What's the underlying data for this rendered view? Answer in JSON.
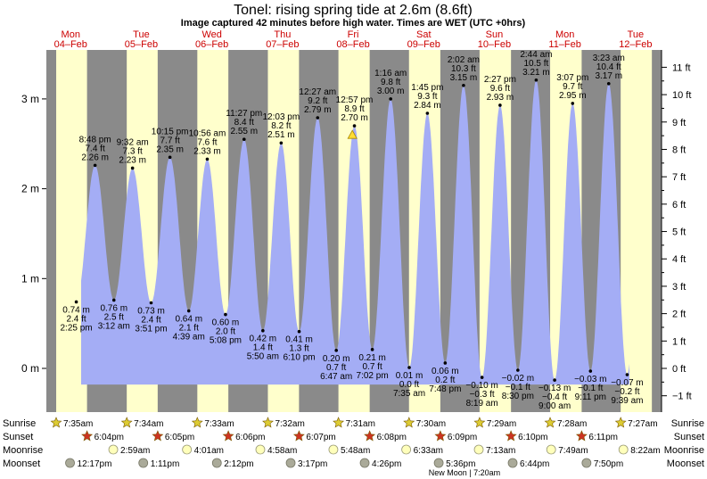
{
  "header": {
    "title": "Tonel: rising  spring tide at 2.6m (8.6ft)",
    "subtitle": "Image captured 42 minutes before high water. Times are WET (UTC +0hrs)"
  },
  "colors": {
    "night": "#8a8a8a",
    "day": "#ffffcc",
    "tide_fill": "#a4adf5",
    "day_label": "#cc0000",
    "sunrise_star": "#ddcc33",
    "sunset_star": "#cc3322",
    "moonrise": "#ffffbb",
    "moonset": "#aaaa99"
  },
  "chart_data": {
    "type": "area",
    "title": "Tonel: rising  spring tide at 2.6m (8.6ft)",
    "ylabel_left": "m",
    "ylabel_right": "ft",
    "ylim_m": [
      -0.55,
      3.5
    ],
    "yticks_m": [
      {
        "v": 0,
        "label": "0 m"
      },
      {
        "v": 1,
        "label": "1 m"
      },
      {
        "v": 2,
        "label": "2 m"
      },
      {
        "v": 3,
        "label": "3 m"
      }
    ],
    "yticks_ft": [
      {
        "v": -1,
        "label": "−1 ft"
      },
      {
        "v": 0,
        "label": "0 ft"
      },
      {
        "v": 1,
        "label": "1 ft"
      },
      {
        "v": 2,
        "label": "2 ft"
      },
      {
        "v": 3,
        "label": "3 ft"
      },
      {
        "v": 4,
        "label": "4 ft"
      },
      {
        "v": 5,
        "label": "5 ft"
      },
      {
        "v": 6,
        "label": "6 ft"
      },
      {
        "v": 7,
        "label": "7 ft"
      },
      {
        "v": 8,
        "label": "8 ft"
      },
      {
        "v": 9,
        "label": "9 ft"
      },
      {
        "v": 10,
        "label": "10 ft"
      },
      {
        "v": 11,
        "label": "11 ft"
      }
    ],
    "days": [
      {
        "name": "Mon",
        "date": "04–Feb",
        "sunrise": "7:35am",
        "sunset": "6:04pm",
        "moonrise": "",
        "moonset": "12:17pm"
      },
      {
        "name": "Tue",
        "date": "05–Feb",
        "sunrise": "7:34am",
        "sunset": "6:05pm",
        "moonrise": "2:59am",
        "moonset": "1:11pm"
      },
      {
        "name": "Wed",
        "date": "06–Feb",
        "sunrise": "7:33am",
        "sunset": "6:06pm",
        "moonrise": "4:01am",
        "moonset": "2:12pm"
      },
      {
        "name": "Thu",
        "date": "07–Feb",
        "sunrise": "7:32am",
        "sunset": "6:07pm",
        "moonrise": "4:58am",
        "moonset": "3:17pm"
      },
      {
        "name": "Fri",
        "date": "08–Feb",
        "sunrise": "7:31am",
        "sunset": "6:08pm",
        "moonrise": "5:48am",
        "moonset": "4:26pm"
      },
      {
        "name": "Sat",
        "date": "09–Feb",
        "sunrise": "7:30am",
        "sunset": "6:09pm",
        "moonrise": "6:33am",
        "moonset": "5:36pm"
      },
      {
        "name": "Sun",
        "date": "10–Feb",
        "sunrise": "7:29am",
        "sunset": "6:10pm",
        "moonrise": "7:13am",
        "moonset": "6:44pm"
      },
      {
        "name": "Mon",
        "date": "11–Feb",
        "sunrise": "7:28am",
        "sunset": "6:11pm",
        "moonrise": "7:49am",
        "moonset": "7:50pm"
      },
      {
        "name": "Tue",
        "date": "12–Feb",
        "sunrise": "7:27am",
        "sunset": "",
        "moonrise": "8:22am",
        "moonset": ""
      }
    ],
    "tides": [
      {
        "type": "low",
        "t": "2019-02-04 14:25",
        "m": 0.74,
        "m_label": "0.74 m",
        "ft_label": "2.4 ft",
        "time_label": "2:25 pm"
      },
      {
        "type": "high",
        "t": "2019-02-04 20:48",
        "m": 2.26,
        "m_label": "2.26 m",
        "ft_label": "7.4 ft",
        "time_label": "8:48 pm"
      },
      {
        "type": "low",
        "t": "2019-02-05 03:12",
        "m": 0.76,
        "m_label": "0.76 m",
        "ft_label": "2.5 ft",
        "time_label": "3:12 am"
      },
      {
        "type": "high",
        "t": "2019-02-05 09:32",
        "m": 2.23,
        "m_label": "2.23 m",
        "ft_label": "7.3 ft",
        "time_label": "9:32 am"
      },
      {
        "type": "low",
        "t": "2019-02-05 15:51",
        "m": 0.73,
        "m_label": "0.73 m",
        "ft_label": "2.4 ft",
        "time_label": "3:51 pm"
      },
      {
        "type": "high",
        "t": "2019-02-05 22:15",
        "m": 2.35,
        "m_label": "2.35 m",
        "ft_label": "7.7 ft",
        "time_label": "10:15 pm"
      },
      {
        "type": "low",
        "t": "2019-02-06 04:39",
        "m": 0.64,
        "m_label": "0.64 m",
        "ft_label": "2.1 ft",
        "time_label": "4:39 am"
      },
      {
        "type": "high",
        "t": "2019-02-06 10:56",
        "m": 2.33,
        "m_label": "2.33 m",
        "ft_label": "7.6 ft",
        "time_label": "10:56 am"
      },
      {
        "type": "low",
        "t": "2019-02-06 17:08",
        "m": 0.6,
        "m_label": "0.60 m",
        "ft_label": "2.0 ft",
        "time_label": "5:08 pm"
      },
      {
        "type": "high",
        "t": "2019-02-06 23:27",
        "m": 2.55,
        "m_label": "2.55 m",
        "ft_label": "8.4 ft",
        "time_label": "11:27 pm"
      },
      {
        "type": "low",
        "t": "2019-02-07 05:50",
        "m": 0.42,
        "m_label": "0.42 m",
        "ft_label": "1.4 ft",
        "time_label": "5:50 am"
      },
      {
        "type": "high",
        "t": "2019-02-07 12:03",
        "m": 2.51,
        "m_label": "2.51 m",
        "ft_label": "8.2 ft",
        "time_label": "12:03 pm"
      },
      {
        "type": "low",
        "t": "2019-02-07 18:10",
        "m": 0.41,
        "m_label": "0.41 m",
        "ft_label": "1.3 ft",
        "time_label": "6:10 pm"
      },
      {
        "type": "high",
        "t": "2019-02-08 00:27",
        "m": 2.79,
        "m_label": "2.79 m",
        "ft_label": "9.2 ft",
        "time_label": "12:27 am"
      },
      {
        "type": "low",
        "t": "2019-02-08 06:47",
        "m": 0.2,
        "m_label": "0.20 m",
        "ft_label": "0.7 ft",
        "time_label": "6:47 am"
      },
      {
        "type": "high",
        "t": "2019-02-08 12:57",
        "m": 2.7,
        "m_label": "2.70 m",
        "ft_label": "8.9 ft",
        "time_label": "12:57 pm"
      },
      {
        "type": "low",
        "t": "2019-02-08 19:02",
        "m": 0.21,
        "m_label": "0.21 m",
        "ft_label": "0.7 ft",
        "time_label": "7:02 pm"
      },
      {
        "type": "high",
        "t": "2019-02-09 01:16",
        "m": 3.0,
        "m_label": "3.00 m",
        "ft_label": "9.8 ft",
        "time_label": "1:16 am"
      },
      {
        "type": "low",
        "t": "2019-02-09 07:35",
        "m": 0.01,
        "m_label": "0.01 m",
        "ft_label": "0.0 ft",
        "time_label": "7:35 am"
      },
      {
        "type": "high",
        "t": "2019-02-09 13:45",
        "m": 2.84,
        "m_label": "2.84 m",
        "ft_label": "9.3 ft",
        "time_label": "1:45 pm"
      },
      {
        "type": "low",
        "t": "2019-02-09 19:48",
        "m": 0.06,
        "m_label": "0.06 m",
        "ft_label": "0.2 ft",
        "time_label": "7:48 pm"
      },
      {
        "type": "high",
        "t": "2019-02-10 02:02",
        "m": 3.15,
        "m_label": "3.15 m",
        "ft_label": "10.3 ft",
        "time_label": "2:02 am"
      },
      {
        "type": "low",
        "t": "2019-02-10 08:19",
        "m": -0.1,
        "m_label": "−0.10 m",
        "ft_label": "−0.3 ft",
        "time_label": "8:19 am"
      },
      {
        "type": "high",
        "t": "2019-02-10 14:27",
        "m": 2.93,
        "m_label": "2.93 m",
        "ft_label": "9.6 ft",
        "time_label": "2:27 pm"
      },
      {
        "type": "low",
        "t": "2019-02-10 20:30",
        "m": -0.02,
        "m_label": "−0.02 m",
        "ft_label": "−0.1 ft",
        "time_label": "8:30 pm"
      },
      {
        "type": "high",
        "t": "2019-02-11 02:44",
        "m": 3.21,
        "m_label": "3.21 m",
        "ft_label": "10.5 ft",
        "time_label": "2:44 am"
      },
      {
        "type": "low",
        "t": "2019-02-11 09:00",
        "m": -0.13,
        "m_label": "−0.13 m",
        "ft_label": "−0.4 ft",
        "time_label": "9:00 am"
      },
      {
        "type": "high",
        "t": "2019-02-11 15:07",
        "m": 2.95,
        "m_label": "2.95 m",
        "ft_label": "9.7 ft",
        "time_label": "3:07 pm"
      },
      {
        "type": "low",
        "t": "2019-02-11 21:11",
        "m": -0.03,
        "m_label": "−0.03 m",
        "ft_label": "−0.1 ft",
        "time_label": "9:11 pm"
      },
      {
        "type": "high",
        "t": "2019-02-12 03:23",
        "m": 3.17,
        "m_label": "3.17 m",
        "ft_label": "10.4 ft",
        "time_label": "3:23 am"
      },
      {
        "type": "low",
        "t": "2019-02-12 09:39",
        "m": -0.07,
        "m_label": "−0.07 m",
        "ft_label": "−0.2 ft",
        "time_label": "9:39 am"
      }
    ],
    "current": {
      "t": "2019-02-08 12:15",
      "m": 2.6
    }
  },
  "rows": {
    "sunrise": "Sunrise",
    "sunset": "Sunset",
    "moonrise": "Moonrise",
    "moonset": "Moonset"
  },
  "footer": {
    "moon_phase": "New Moon | 7:20am"
  }
}
